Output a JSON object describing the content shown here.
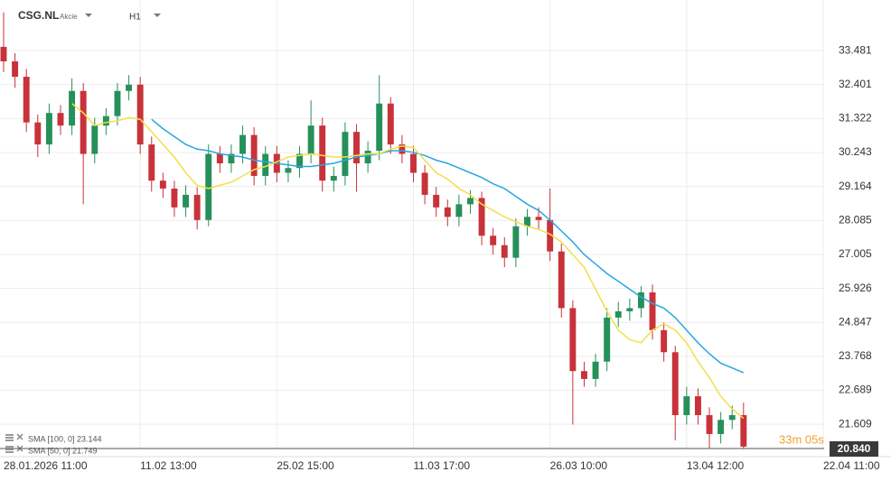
{
  "header": {
    "symbol": "CSG.NL",
    "asset_class": "Akcie",
    "interval": "H1"
  },
  "countdown": "33m 05s",
  "chart_data": {
    "type": "candlestick",
    "up_color": "#26905a",
    "down_color": "#c8323a",
    "ylim": [
      20.84,
      34.86
    ],
    "yticks": [
      33.481,
      32.401,
      31.322,
      30.243,
      29.164,
      28.085,
      27.005,
      25.926,
      24.847,
      23.768,
      22.689,
      21.609
    ],
    "xlim": [
      0,
      72
    ],
    "xticks": [
      {
        "value": 0,
        "label": "28.01.2026 11:00"
      },
      {
        "value": 12,
        "label": "11.02 13:00"
      },
      {
        "value": 24,
        "label": "25.02 15:00"
      },
      {
        "value": 36,
        "label": "11.03 17:00"
      },
      {
        "value": 48,
        "label": "26.03 10:00"
      },
      {
        "value": 60,
        "label": "13.04 12:00"
      },
      {
        "value": 72,
        "label": "22.04 11:00"
      }
    ],
    "grid": true,
    "last_price": {
      "value": 20.84,
      "label": "20.840"
    },
    "open": [
      33.6,
      33.14,
      32.65,
      31.2,
      30.5,
      31.5,
      31.1,
      32.2,
      30.2,
      31.1,
      31.4,
      32.2,
      32.4,
      30.5,
      29.35,
      29.1,
      28.5,
      28.9,
      28.1,
      30.2,
      29.9,
      30.2,
      30.8,
      29.5,
      30.2,
      29.6,
      29.75,
      30.2,
      31.1,
      29.35,
      29.5,
      30.9,
      29.9,
      30.3,
      31.8,
      30.5,
      30.2,
      29.6,
      28.9,
      28.5,
      28.2,
      28.6,
      28.8,
      27.6,
      27.3,
      26.9,
      27.9,
      28.2,
      28.1,
      27.1,
      25.3,
      23.3,
      23.05,
      23.6,
      25.0,
      25.2,
      25.3,
      25.8,
      24.6,
      23.9,
      21.9,
      22.5,
      21.9,
      21.3,
      21.75,
      21.9
    ],
    "high": [
      34.7,
      33.4,
      32.9,
      31.45,
      31.8,
      31.75,
      32.6,
      32.45,
      31.35,
      31.65,
      32.45,
      32.7,
      32.65,
      30.75,
      29.6,
      29.35,
      29.2,
      29.15,
      30.5,
      30.45,
      30.5,
      31.1,
      31.05,
      30.45,
      30.45,
      30.0,
      30.45,
      31.9,
      31.35,
      29.8,
      31.2,
      31.15,
      30.6,
      32.7,
      32.0,
      30.8,
      30.45,
      29.85,
      29.15,
      28.75,
      28.9,
      29.05,
      29.0,
      27.85,
      27.55,
      28.15,
      28.45,
      28.5,
      29.1,
      27.35,
      25.55,
      23.6,
      23.85,
      25.3,
      25.5,
      25.6,
      26.0,
      26.05,
      24.85,
      24.1,
      22.8,
      22.75,
      22.15,
      22.0,
      22.2,
      22.3
    ],
    "low": [
      32.8,
      32.3,
      30.9,
      30.1,
      30.2,
      30.8,
      30.8,
      28.6,
      29.9,
      30.8,
      31.1,
      31.9,
      30.2,
      29.0,
      28.8,
      28.2,
      28.2,
      27.8,
      27.9,
      29.6,
      29.6,
      29.9,
      29.2,
      29.2,
      29.3,
      29.3,
      29.45,
      29.9,
      29.0,
      29.0,
      29.2,
      29.0,
      29.6,
      30.0,
      30.2,
      29.9,
      29.3,
      28.6,
      28.2,
      27.9,
      27.9,
      28.3,
      27.3,
      27.0,
      26.6,
      26.6,
      27.6,
      27.8,
      26.8,
      25.0,
      21.6,
      22.8,
      22.8,
      23.3,
      24.7,
      24.9,
      25.0,
      24.3,
      23.6,
      21.1,
      21.6,
      21.6,
      20.85,
      21.0,
      21.45,
      20.85
    ],
    "close": [
      33.14,
      32.65,
      31.2,
      30.5,
      31.5,
      31.1,
      32.2,
      30.2,
      31.1,
      31.4,
      32.2,
      32.4,
      30.5,
      29.35,
      29.1,
      28.5,
      28.9,
      28.1,
      30.2,
      29.9,
      30.2,
      30.8,
      29.5,
      30.2,
      29.6,
      29.75,
      30.2,
      31.1,
      29.35,
      29.5,
      30.9,
      29.9,
      30.3,
      31.8,
      30.5,
      30.2,
      29.6,
      28.9,
      28.5,
      28.2,
      28.6,
      28.8,
      27.6,
      27.3,
      26.9,
      27.9,
      28.2,
      28.1,
      27.1,
      25.3,
      23.3,
      23.05,
      23.6,
      25.0,
      25.2,
      25.3,
      25.8,
      24.6,
      23.9,
      21.9,
      22.5,
      21.9,
      21.3,
      21.75,
      21.9,
      20.9
    ],
    "series": [
      {
        "name": "SMA [100, 0] 23.144",
        "color": "#2aa6df",
        "values": [
          null,
          null,
          null,
          null,
          null,
          null,
          null,
          null,
          null,
          null,
          null,
          null,
          null,
          31.3,
          31.0,
          30.75,
          30.5,
          30.35,
          30.3,
          30.2,
          30.15,
          30.1,
          30.0,
          29.95,
          29.9,
          29.85,
          29.8,
          29.8,
          29.85,
          29.9,
          30.0,
          30.1,
          30.15,
          30.2,
          30.3,
          30.3,
          30.25,
          30.15,
          30.0,
          29.9,
          29.75,
          29.6,
          29.45,
          29.25,
          29.1,
          28.85,
          28.6,
          28.4,
          28.1,
          27.75,
          27.4,
          27.0,
          26.7,
          26.4,
          26.15,
          25.9,
          25.65,
          25.45,
          25.3,
          25.0,
          24.6,
          24.2,
          23.85,
          23.55,
          23.4,
          23.25
        ]
      },
      {
        "name": "SMA [50, 0] 21.749",
        "color": "#f2df4a",
        "values": [
          null,
          null,
          null,
          null,
          null,
          null,
          31.8,
          31.5,
          31.1,
          31.2,
          31.25,
          31.35,
          31.3,
          30.9,
          30.5,
          30.1,
          29.6,
          29.2,
          29.1,
          29.2,
          29.3,
          29.5,
          29.7,
          29.8,
          29.95,
          30.1,
          30.15,
          30.2,
          30.15,
          30.1,
          30.1,
          30.15,
          30.2,
          30.2,
          30.35,
          30.45,
          30.4,
          30.0,
          29.6,
          29.4,
          29.1,
          28.9,
          28.6,
          28.4,
          28.2,
          28.05,
          27.9,
          27.8,
          27.65,
          27.4,
          27.0,
          26.6,
          25.9,
          25.2,
          24.6,
          24.3,
          24.2,
          24.6,
          24.8,
          24.6,
          24.2,
          23.6,
          23.1,
          22.5,
          22.1,
          21.8
        ]
      }
    ]
  }
}
